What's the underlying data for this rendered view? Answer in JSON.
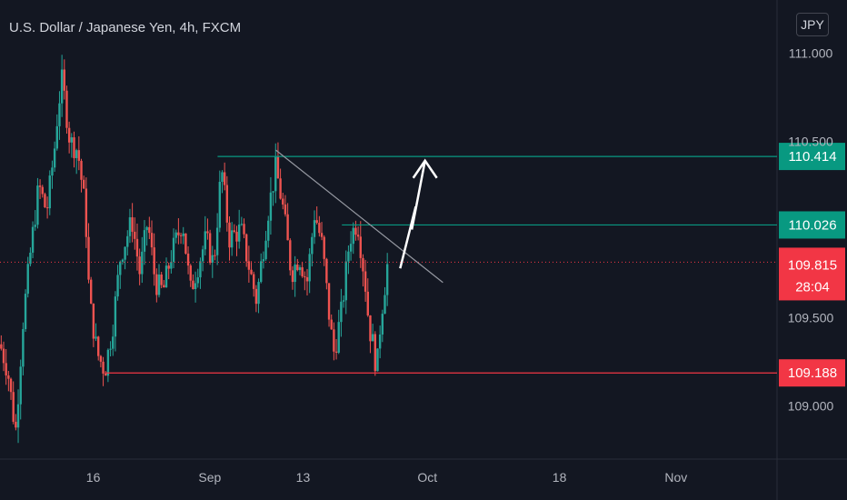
{
  "title": "U.S. Dollar / Japanese Yen, 4h, FXCM",
  "currency_button": "JPY",
  "colors": {
    "background": "#131722",
    "up": "#26a69a",
    "down": "#ef5350",
    "level_support": "#f23645",
    "level_resistance": "#089981",
    "price_label": "#f23645",
    "axis_text": "#b2b5be",
    "trendline": "#9598a1",
    "arrow": "#ffffff"
  },
  "chart_data": {
    "type": "candlestick",
    "y_axis": {
      "min": 108.7,
      "max": 111.3,
      "ticks": [
        {
          "value": 109.0,
          "label": "109.000"
        },
        {
          "value": 109.5,
          "label": "109.500"
        },
        {
          "value": 110.5,
          "label": "110.500"
        },
        {
          "value": 111.0,
          "label": "111.000"
        }
      ]
    },
    "x_axis": {
      "ticks": [
        {
          "pos": 0.12,
          "label": "16"
        },
        {
          "pos": 0.27,
          "label": "Sep"
        },
        {
          "pos": 0.39,
          "label": "13"
        },
        {
          "pos": 0.55,
          "label": "Oct"
        },
        {
          "pos": 0.72,
          "label": "18"
        },
        {
          "pos": 0.87,
          "label": "Nov"
        }
      ]
    },
    "horizontal_levels": [
      {
        "value": 110.414,
        "label": "110.414",
        "kind": "resistance",
        "x_start": 0.28
      },
      {
        "value": 110.026,
        "label": "110.026",
        "kind": "resistance",
        "x_start": 0.44
      },
      {
        "value": 109.188,
        "label": "109.188",
        "kind": "support",
        "x_start": 0.135
      }
    ],
    "current_price": {
      "value": 109.815,
      "label": "109.815",
      "countdown": "28:04"
    },
    "trendline": {
      "from": {
        "t": 0.355,
        "value": 110.45
      },
      "to": {
        "t": 0.57,
        "value": 109.7
      }
    },
    "projection_arrow": [
      {
        "t": 0.515,
        "value": 109.78
      },
      {
        "t": 0.535,
        "value": 110.13
      },
      {
        "t": 0.53,
        "value": 110.0
      },
      {
        "t": 0.547,
        "value": 110.39
      }
    ],
    "price_path": [
      [
        0.0,
        109.35
      ],
      [
        0.01,
        109.2
      ],
      [
        0.02,
        108.85
      ],
      [
        0.03,
        109.5
      ],
      [
        0.04,
        109.9
      ],
      [
        0.05,
        110.25
      ],
      [
        0.06,
        110.1
      ],
      [
        0.07,
        110.45
      ],
      [
        0.075,
        110.7
      ],
      [
        0.08,
        110.85
      ],
      [
        0.09,
        110.5
      ],
      [
        0.1,
        110.45
      ],
      [
        0.11,
        110.1
      ],
      [
        0.115,
        109.6
      ],
      [
        0.125,
        109.3
      ],
      [
        0.135,
        109.2
      ],
      [
        0.145,
        109.45
      ],
      [
        0.155,
        109.85
      ],
      [
        0.17,
        110.05
      ],
      [
        0.18,
        109.75
      ],
      [
        0.19,
        110.05
      ],
      [
        0.2,
        109.7
      ],
      [
        0.21,
        109.65
      ],
      [
        0.22,
        109.85
      ],
      [
        0.235,
        110.05
      ],
      [
        0.245,
        109.65
      ],
      [
        0.255,
        109.8
      ],
      [
        0.265,
        109.95
      ],
      [
        0.275,
        109.8
      ],
      [
        0.285,
        110.35
      ],
      [
        0.295,
        109.95
      ],
      [
        0.31,
        110.0
      ],
      [
        0.32,
        109.8
      ],
      [
        0.33,
        109.6
      ],
      [
        0.345,
        110.1
      ],
      [
        0.355,
        110.35
      ],
      [
        0.365,
        110.1
      ],
      [
        0.375,
        109.75
      ],
      [
        0.385,
        109.85
      ],
      [
        0.395,
        109.7
      ],
      [
        0.405,
        110.1
      ],
      [
        0.415,
        109.9
      ],
      [
        0.425,
        109.45
      ],
      [
        0.43,
        109.3
      ],
      [
        0.44,
        109.55
      ],
      [
        0.45,
        109.95
      ],
      [
        0.46,
        110.05
      ],
      [
        0.47,
        109.7
      ],
      [
        0.475,
        109.45
      ],
      [
        0.48,
        109.35
      ],
      [
        0.485,
        109.2
      ],
      [
        0.49,
        109.5
      ],
      [
        0.5,
        109.85
      ]
    ]
  }
}
